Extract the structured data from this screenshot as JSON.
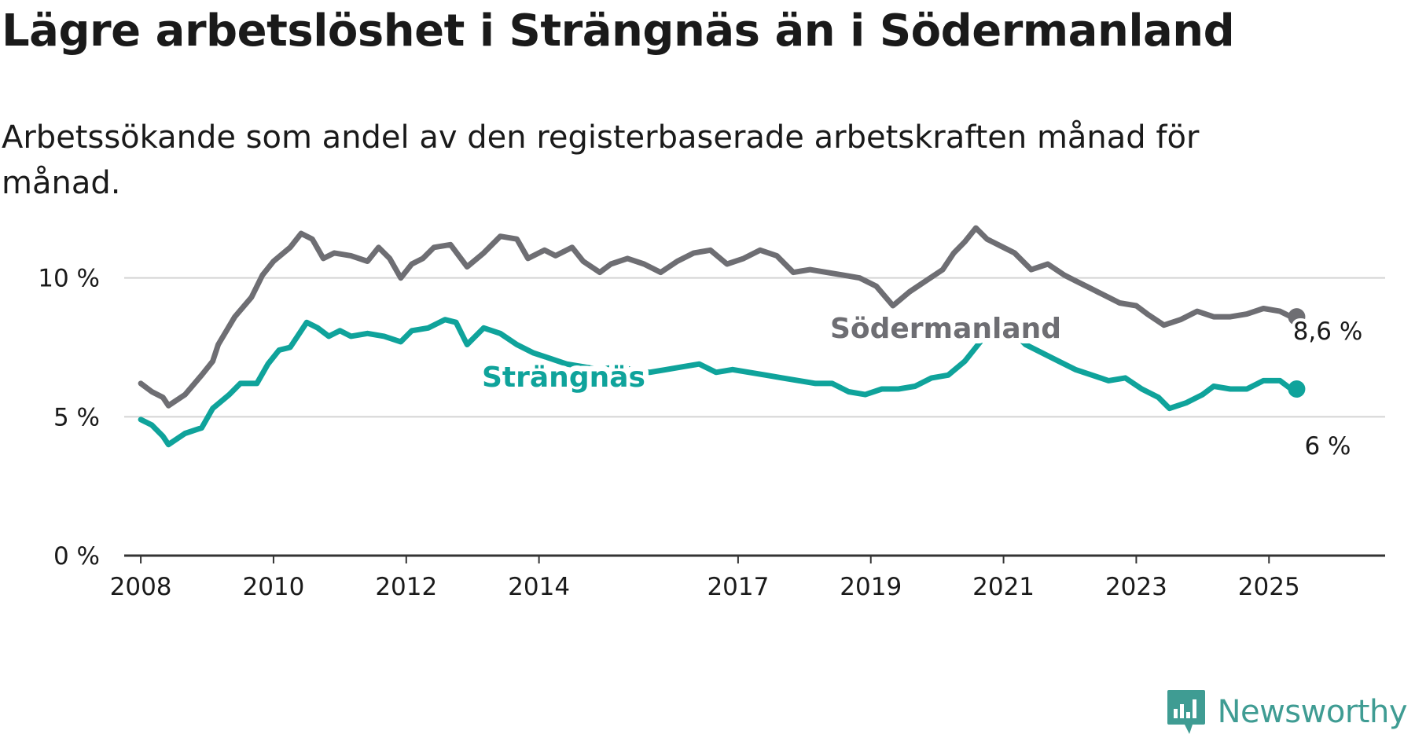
{
  "title": "Lägre arbetslöshet i Strängnäs än i Södermanland",
  "subtitle": "Arbetssökande som andel av den registerbaserade arbetskraften månad för månad.",
  "brand": {
    "name": "Newsworthy",
    "color": "#3f9c93",
    "icon": "newsworthy-logo-icon"
  },
  "chart_data": {
    "type": "line",
    "ylim": [
      0,
      12
    ],
    "yticks": [
      0,
      5,
      10
    ],
    "ytick_labels": [
      "0 %",
      "5 %",
      "10 %"
    ],
    "xlim": [
      "2007-10",
      "2026-10"
    ],
    "xticks": [
      "2008-01",
      "2010-01",
      "2012-01",
      "2014-01",
      "2017-01",
      "2019-01",
      "2021-01",
      "2023-01",
      "2025-01"
    ],
    "xtick_labels": [
      "2008",
      "2010",
      "2012",
      "2014",
      "2017",
      "2019",
      "2021",
      "2023",
      "2025"
    ],
    "grid": true,
    "series": [
      {
        "name": "Södermanland",
        "color": "#6e6e73",
        "end_label": "8,6 %",
        "points": [
          [
            "2008-01",
            6.2
          ],
          [
            "2008-03",
            5.9
          ],
          [
            "2008-05",
            5.7
          ],
          [
            "2008-06",
            5.4
          ],
          [
            "2008-09",
            5.8
          ],
          [
            "2008-12",
            6.5
          ],
          [
            "2009-02",
            7.0
          ],
          [
            "2009-03",
            7.6
          ],
          [
            "2009-06",
            8.6
          ],
          [
            "2009-09",
            9.3
          ],
          [
            "2009-11",
            10.1
          ],
          [
            "2010-01",
            10.6
          ],
          [
            "2010-04",
            11.1
          ],
          [
            "2010-06",
            11.6
          ],
          [
            "2010-08",
            11.4
          ],
          [
            "2010-10",
            10.7
          ],
          [
            "2010-12",
            10.9
          ],
          [
            "2011-03",
            10.8
          ],
          [
            "2011-06",
            10.6
          ],
          [
            "2011-08",
            11.1
          ],
          [
            "2011-10",
            10.7
          ],
          [
            "2011-12",
            10.0
          ],
          [
            "2012-02",
            10.5
          ],
          [
            "2012-04",
            10.7
          ],
          [
            "2012-06",
            11.1
          ],
          [
            "2012-09",
            11.2
          ],
          [
            "2012-12",
            10.4
          ],
          [
            "2013-03",
            10.9
          ],
          [
            "2013-06",
            11.5
          ],
          [
            "2013-09",
            11.4
          ],
          [
            "2013-11",
            10.7
          ],
          [
            "2014-02",
            11.0
          ],
          [
            "2014-04",
            10.8
          ],
          [
            "2014-07",
            11.1
          ],
          [
            "2014-09",
            10.6
          ],
          [
            "2014-12",
            10.2
          ],
          [
            "2015-02",
            10.5
          ],
          [
            "2015-05",
            10.7
          ],
          [
            "2015-08",
            10.5
          ],
          [
            "2015-11",
            10.2
          ],
          [
            "2016-02",
            10.6
          ],
          [
            "2016-05",
            10.9
          ],
          [
            "2016-08",
            11.0
          ],
          [
            "2016-11",
            10.5
          ],
          [
            "2017-02",
            10.7
          ],
          [
            "2017-05",
            11.0
          ],
          [
            "2017-08",
            10.8
          ],
          [
            "2017-11",
            10.2
          ],
          [
            "2018-02",
            10.3
          ],
          [
            "2018-05",
            10.2
          ],
          [
            "2018-08",
            10.1
          ],
          [
            "2018-11",
            10.0
          ],
          [
            "2019-02",
            9.7
          ],
          [
            "2019-05",
            9.0
          ],
          [
            "2019-08",
            9.5
          ],
          [
            "2019-11",
            9.9
          ],
          [
            "2020-02",
            10.3
          ],
          [
            "2020-04",
            10.9
          ],
          [
            "2020-06",
            11.3
          ],
          [
            "2020-08",
            11.8
          ],
          [
            "2020-10",
            11.4
          ],
          [
            "2020-12",
            11.2
          ],
          [
            "2021-03",
            10.9
          ],
          [
            "2021-06",
            10.3
          ],
          [
            "2021-09",
            10.5
          ],
          [
            "2021-12",
            10.1
          ],
          [
            "2022-02",
            9.9
          ],
          [
            "2022-05",
            9.6
          ],
          [
            "2022-08",
            9.3
          ],
          [
            "2022-10",
            9.1
          ],
          [
            "2023-01",
            9.0
          ],
          [
            "2023-03",
            8.7
          ],
          [
            "2023-06",
            8.3
          ],
          [
            "2023-09",
            8.5
          ],
          [
            "2023-12",
            8.8
          ],
          [
            "2024-03",
            8.6
          ],
          [
            "2024-06",
            8.6
          ],
          [
            "2024-09",
            8.7
          ],
          [
            "2024-12",
            8.9
          ],
          [
            "2025-03",
            8.8
          ],
          [
            "2025-05",
            8.6
          ],
          [
            "2025-06",
            8.6
          ]
        ]
      },
      {
        "name": "Strängnäs",
        "color": "#0fa39b",
        "end_label": "6 %",
        "points": [
          [
            "2008-01",
            4.9
          ],
          [
            "2008-03",
            4.7
          ],
          [
            "2008-05",
            4.3
          ],
          [
            "2008-06",
            4.0
          ],
          [
            "2008-09",
            4.4
          ],
          [
            "2008-12",
            4.6
          ],
          [
            "2009-02",
            5.3
          ],
          [
            "2009-05",
            5.8
          ],
          [
            "2009-07",
            6.2
          ],
          [
            "2009-10",
            6.2
          ],
          [
            "2009-12",
            6.9
          ],
          [
            "2010-02",
            7.4
          ],
          [
            "2010-04",
            7.5
          ],
          [
            "2010-07",
            8.4
          ],
          [
            "2010-09",
            8.2
          ],
          [
            "2010-11",
            7.9
          ],
          [
            "2011-01",
            8.1
          ],
          [
            "2011-03",
            7.9
          ],
          [
            "2011-06",
            8.0
          ],
          [
            "2011-09",
            7.9
          ],
          [
            "2011-12",
            7.7
          ],
          [
            "2012-02",
            8.1
          ],
          [
            "2012-05",
            8.2
          ],
          [
            "2012-08",
            8.5
          ],
          [
            "2012-10",
            8.4
          ],
          [
            "2012-12",
            7.6
          ],
          [
            "2013-03",
            8.2
          ],
          [
            "2013-06",
            8.0
          ],
          [
            "2013-09",
            7.6
          ],
          [
            "2013-12",
            7.3
          ],
          [
            "2014-03",
            7.1
          ],
          [
            "2014-06",
            6.9
          ],
          [
            "2014-09",
            6.8
          ],
          [
            "2014-12",
            6.7
          ],
          [
            "2015-03",
            6.8
          ],
          [
            "2015-06",
            6.7
          ],
          [
            "2015-09",
            6.6
          ],
          [
            "2015-12",
            6.7
          ],
          [
            "2016-03",
            6.8
          ],
          [
            "2016-06",
            6.9
          ],
          [
            "2016-09",
            6.6
          ],
          [
            "2016-12",
            6.7
          ],
          [
            "2017-03",
            6.6
          ],
          [
            "2017-06",
            6.5
          ],
          [
            "2017-09",
            6.4
          ],
          [
            "2017-12",
            6.3
          ],
          [
            "2018-03",
            6.2
          ],
          [
            "2018-06",
            6.2
          ],
          [
            "2018-09",
            5.9
          ],
          [
            "2018-12",
            5.8
          ],
          [
            "2019-03",
            6.0
          ],
          [
            "2019-06",
            6.0
          ],
          [
            "2019-09",
            6.1
          ],
          [
            "2019-12",
            6.4
          ],
          [
            "2020-03",
            6.5
          ],
          [
            "2020-06",
            7.0
          ],
          [
            "2020-08",
            7.5
          ],
          [
            "2020-10",
            8.0
          ],
          [
            "2020-12",
            7.9
          ],
          [
            "2021-03",
            8.0
          ],
          [
            "2021-05",
            7.6
          ],
          [
            "2021-08",
            7.3
          ],
          [
            "2021-11",
            7.0
          ],
          [
            "2022-02",
            6.7
          ],
          [
            "2022-05",
            6.5
          ],
          [
            "2022-08",
            6.3
          ],
          [
            "2022-11",
            6.4
          ],
          [
            "2023-02",
            6.0
          ],
          [
            "2023-05",
            5.7
          ],
          [
            "2023-07",
            5.3
          ],
          [
            "2023-10",
            5.5
          ],
          [
            "2024-01",
            5.8
          ],
          [
            "2024-03",
            6.1
          ],
          [
            "2024-06",
            6.0
          ],
          [
            "2024-09",
            6.0
          ],
          [
            "2024-12",
            6.3
          ],
          [
            "2025-03",
            6.3
          ],
          [
            "2025-05",
            6.0
          ],
          [
            "2025-06",
            6.0
          ]
        ]
      }
    ]
  }
}
